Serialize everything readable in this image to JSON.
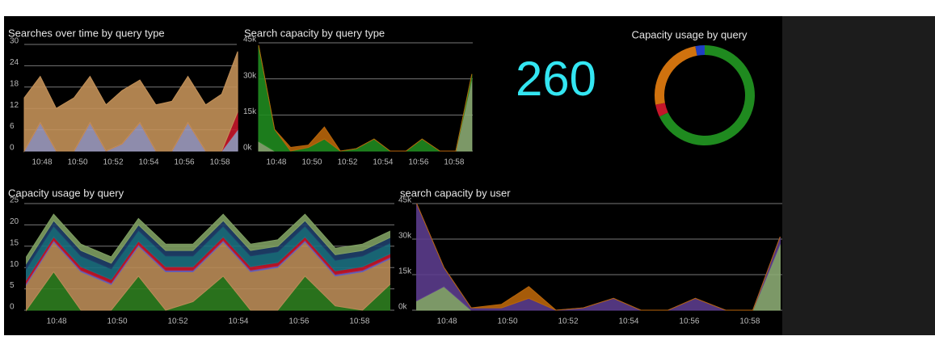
{
  "chart_data": [
    {
      "type": "area",
      "title": "Searches over time by query type",
      "x": [
        47,
        47.9,
        48.8,
        49.8,
        50.7,
        51.6,
        52.5,
        53.5,
        54.4,
        55.3,
        56.2,
        57.2,
        58.1,
        59
      ],
      "xlim": [
        47,
        58.95
      ],
      "xticks": [
        {
          "value": 48,
          "label": "10:48"
        },
        {
          "value": 50,
          "label": "10:50"
        },
        {
          "value": 52,
          "label": "10:52"
        },
        {
          "value": 54,
          "label": "10:54"
        },
        {
          "value": 56,
          "label": "10:56"
        },
        {
          "value": 58,
          "label": "10:58"
        }
      ],
      "ylim": [
        0,
        30
      ],
      "yticks": [
        0,
        6,
        12,
        18,
        24,
        30
      ],
      "grid": true,
      "series": [
        {
          "color": "#9d9bbf",
          "values": [
            0,
            8,
            0,
            0,
            8,
            0,
            2,
            8,
            0,
            0,
            8,
            0,
            0,
            6
          ]
        },
        {
          "color": "#c4162a",
          "values": [
            0,
            0,
            0,
            0,
            0,
            0,
            0,
            0,
            0,
            0,
            0,
            0,
            0,
            5
          ]
        },
        {
          "color": "#c29058",
          "values": [
            15,
            13,
            12,
            15,
            13,
            13,
            15,
            12,
            13,
            14,
            13,
            13,
            16,
            17
          ]
        }
      ]
    },
    {
      "type": "area",
      "title": "Search capacity by query type",
      "x": [
        47,
        47.9,
        48.8,
        49.8,
        50.7,
        51.6,
        52.5,
        53.5,
        54.4,
        55.3,
        56.2,
        57.2,
        58.1,
        59
      ],
      "xlim": [
        47,
        59.05
      ],
      "xticks": [
        {
          "value": 48,
          "label": "10:48"
        },
        {
          "value": 50,
          "label": "10:50"
        },
        {
          "value": 52,
          "label": "10:52"
        },
        {
          "value": 54,
          "label": "10:54"
        },
        {
          "value": 56,
          "label": "10:56"
        },
        {
          "value": 58,
          "label": "10:58"
        }
      ],
      "ylim": [
        0,
        45000
      ],
      "yticks": [
        {
          "value": 0,
          "label": "0k"
        },
        {
          "value": 15000,
          "label": "15k"
        },
        {
          "value": 30000,
          "label": "30k"
        },
        {
          "value": 45000,
          "label": "45k"
        }
      ],
      "grid": true,
      "series": [
        {
          "color": "#8aa872",
          "values": [
            4000,
            0,
            0,
            0,
            0,
            0,
            0,
            0,
            0,
            0,
            0,
            0,
            0,
            30000
          ]
        },
        {
          "color": "#1f8a1f",
          "values": [
            40000,
            9000,
            0,
            1500,
            5000,
            0,
            1000,
            5000,
            0,
            0,
            5000,
            0,
            0,
            2000
          ]
        },
        {
          "color": "#b8650a",
          "values": [
            0,
            0,
            1500,
            1000,
            5000,
            0,
            0,
            0,
            0,
            0,
            0,
            0,
            0,
            0
          ]
        }
      ]
    },
    {
      "type": "stat",
      "value": 260,
      "color": "#33e6f2"
    },
    {
      "type": "donut",
      "title": "Capacity usage by query",
      "values": [
        68,
        4,
        25,
        3
      ],
      "colors": [
        "#1f8a1f",
        "#c4162a",
        "#d0720e",
        "#1f3fc4"
      ]
    },
    {
      "type": "area",
      "title": "Capacity usage by query",
      "x": [
        47,
        47.9,
        48.8,
        49.8,
        50.7,
        51.6,
        52.5,
        53.5,
        54.4,
        55.3,
        56.2,
        57.2,
        58.1,
        59
      ],
      "xlim": [
        46.93,
        59.15
      ],
      "xticks": [
        {
          "value": 48,
          "label": "10:48"
        },
        {
          "value": 50,
          "label": "10:50"
        },
        {
          "value": 52,
          "label": "10:52"
        },
        {
          "value": 54,
          "label": "10:54"
        },
        {
          "value": 56,
          "label": "10:56"
        },
        {
          "value": 58,
          "label": "10:58"
        }
      ],
      "ylim": [
        0,
        25
      ],
      "yticks": [
        0,
        5,
        10,
        15,
        20,
        25
      ],
      "grid": true,
      "series": [
        {
          "color": "#2e7d1f",
          "values": [
            0,
            9,
            0,
            0,
            8,
            0,
            2,
            8,
            0,
            0,
            8,
            1,
            0,
            6
          ]
        },
        {
          "color": "#b98b56",
          "values": [
            6,
            7,
            9,
            6,
            7,
            9,
            7,
            8,
            9,
            10,
            8,
            7,
            9,
            6
          ]
        },
        {
          "color": "#6a5fb8",
          "values": [
            0.4,
            0.4,
            0.4,
            0.4,
            0.4,
            0.4,
            0.4,
            0.4,
            0.4,
            0.4,
            0.4,
            0.4,
            0.4,
            0.4
          ]
        },
        {
          "color": "#c4162a",
          "values": [
            0.8,
            0.8,
            0.8,
            0.8,
            0.8,
            0.8,
            0.8,
            0.8,
            0.8,
            0.8,
            0.8,
            0.8,
            0.8,
            0.8
          ]
        },
        {
          "color": "#1b6f80",
          "values": [
            2.5,
            2.5,
            2.5,
            2.5,
            2.5,
            2.5,
            2.5,
            2.5,
            2.5,
            2.5,
            2.5,
            2.5,
            2.5,
            2.5
          ]
        },
        {
          "color": "#1f3f6a",
          "values": [
            1.3,
            1.3,
            1.3,
            1.3,
            1.3,
            1.3,
            1.3,
            1.3,
            1.3,
            1.3,
            1.3,
            1.3,
            1.3,
            1.3
          ]
        },
        {
          "color": "#7e9e62",
          "values": [
            1.5,
            1.5,
            1.5,
            1.5,
            1.5,
            1.5,
            1.5,
            1.5,
            1.5,
            1.5,
            1.5,
            1.5,
            1.5,
            1.5
          ]
        }
      ]
    },
    {
      "type": "area",
      "title": "search capacity by user",
      "x": [
        47,
        47.9,
        48.8,
        49.8,
        50.7,
        51.6,
        52.5,
        53.5,
        54.4,
        55.3,
        56.2,
        57.2,
        58.1,
        59
      ],
      "xlim": [
        46.85,
        59.07
      ],
      "xticks": [
        {
          "value": 48,
          "label": "10:48"
        },
        {
          "value": 50,
          "label": "10:50"
        },
        {
          "value": 52,
          "label": "10:52"
        },
        {
          "value": 54,
          "label": "10:54"
        },
        {
          "value": 56,
          "label": "10:56"
        },
        {
          "value": 58,
          "label": "10:58"
        }
      ],
      "ylim": [
        0,
        45000
      ],
      "yticks": [
        {
          "value": 0,
          "label": "0k"
        },
        {
          "value": 15000,
          "label": "15k"
        },
        {
          "value": 30000,
          "label": "30k"
        },
        {
          "value": 45000,
          "label": "45k"
        }
      ],
      "grid": true,
      "series": [
        {
          "color": "#8aa872",
          "values": [
            4000,
            10000,
            0,
            0,
            0,
            0,
            0,
            0,
            0,
            0,
            0,
            0,
            0,
            28000
          ]
        },
        {
          "color": "#5b3c8c",
          "values": [
            41000,
            8000,
            1000,
            1000,
            5000,
            0,
            1000,
            5000,
            0,
            0,
            5000,
            0,
            0,
            3000
          ]
        },
        {
          "color": "#b8650a",
          "values": [
            0,
            0,
            0,
            1500,
            5000,
            0,
            0,
            0,
            0,
            0,
            0,
            0,
            0,
            0
          ]
        }
      ]
    }
  ]
}
